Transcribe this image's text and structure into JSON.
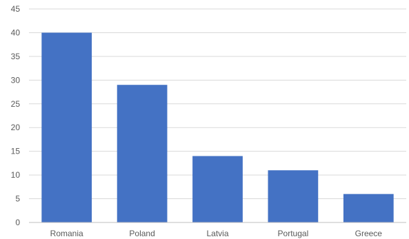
{
  "chart_data": {
    "type": "bar",
    "title": "",
    "xlabel": "",
    "ylabel": "",
    "categories": [
      "Romania",
      "Poland",
      "Latvia",
      "Portugal",
      "Greece"
    ],
    "values": [
      40,
      29,
      14,
      11,
      6
    ],
    "ylim": [
      0,
      45
    ],
    "yticks": [
      "0",
      "5",
      "10",
      "15",
      "20",
      "25",
      "30",
      "35",
      "40",
      "45"
    ],
    "grid": true,
    "legend": "none",
    "bar_color": "#4472C4",
    "grid_color": "#D9D9D9",
    "axis_color": "#BFBFBF",
    "text_color": "#595959"
  }
}
